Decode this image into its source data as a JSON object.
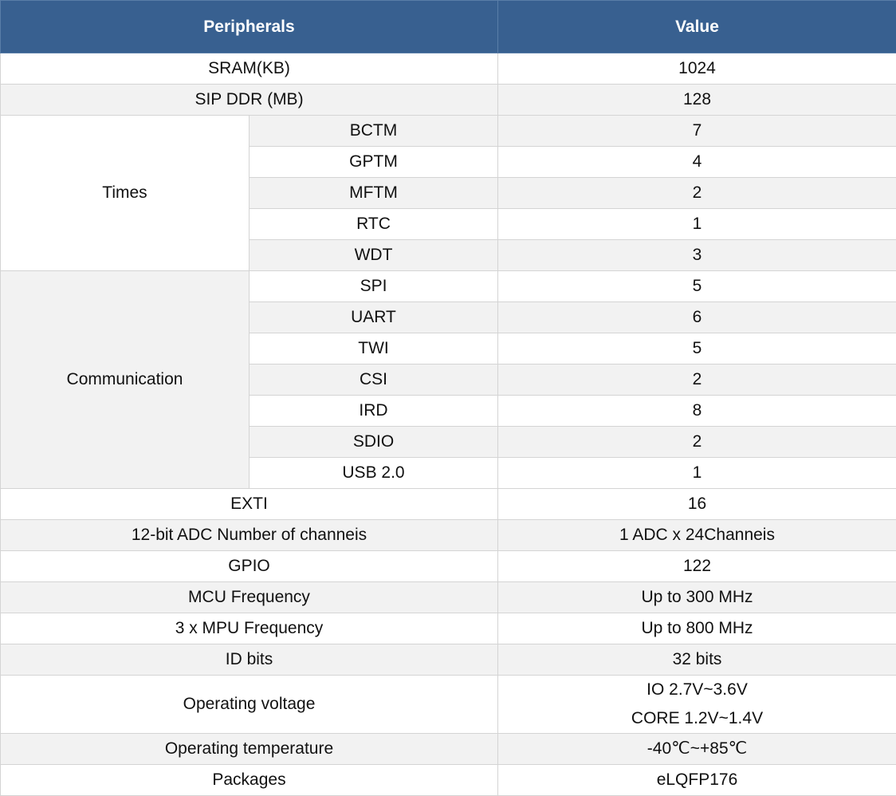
{
  "table": {
    "header": [
      "Peripherals",
      "Value"
    ],
    "rows": [
      {
        "name": "SRAM(KB)",
        "value": [
          "1024"
        ]
      },
      {
        "name": "SIP DDR (MB)",
        "value": [
          "128"
        ]
      },
      {
        "group": "Times",
        "items": [
          {
            "name": "BCTM",
            "value": [
              "7"
            ]
          },
          {
            "name": "GPTM",
            "value": [
              "4"
            ]
          },
          {
            "name": "MFTM",
            "value": [
              "2"
            ]
          },
          {
            "name": "RTC",
            "value": [
              "1"
            ]
          },
          {
            "name": "WDT",
            "value": [
              "3"
            ]
          }
        ]
      },
      {
        "group": "Communication",
        "items": [
          {
            "name": "SPI",
            "value": [
              "5"
            ]
          },
          {
            "name": "UART",
            "value": [
              "6"
            ]
          },
          {
            "name": "TWI",
            "value": [
              "5"
            ]
          },
          {
            "name": "CSI",
            "value": [
              "2"
            ]
          },
          {
            "name": "IRD",
            "value": [
              "8"
            ]
          },
          {
            "name": "SDIO",
            "value": [
              "2"
            ]
          },
          {
            "name": "USB 2.0",
            "value": [
              "1"
            ]
          }
        ]
      },
      {
        "name": "EXTI",
        "value": [
          "16"
        ]
      },
      {
        "name": "12-bit ADC Number of channeis",
        "value": [
          "1 ADC x 24Channeis"
        ]
      },
      {
        "name": "GPIO",
        "value": [
          "122"
        ]
      },
      {
        "name": "MCU Frequency",
        "value": [
          "Up to 300 MHz"
        ]
      },
      {
        "name": "3 x MPU Frequency",
        "value": [
          "Up to 800 MHz"
        ]
      },
      {
        "name": "ID bits",
        "value": [
          "32 bits"
        ]
      },
      {
        "name": "Operating voltage",
        "value": [
          "IO 2.7V~3.6V",
          "CORE 1.2V~1.4V"
        ]
      },
      {
        "name": "Operating temperature",
        "value": [
          "-40℃~+85℃"
        ]
      },
      {
        "name": "Packages",
        "value": [
          "eLQFP176"
        ]
      }
    ]
  }
}
